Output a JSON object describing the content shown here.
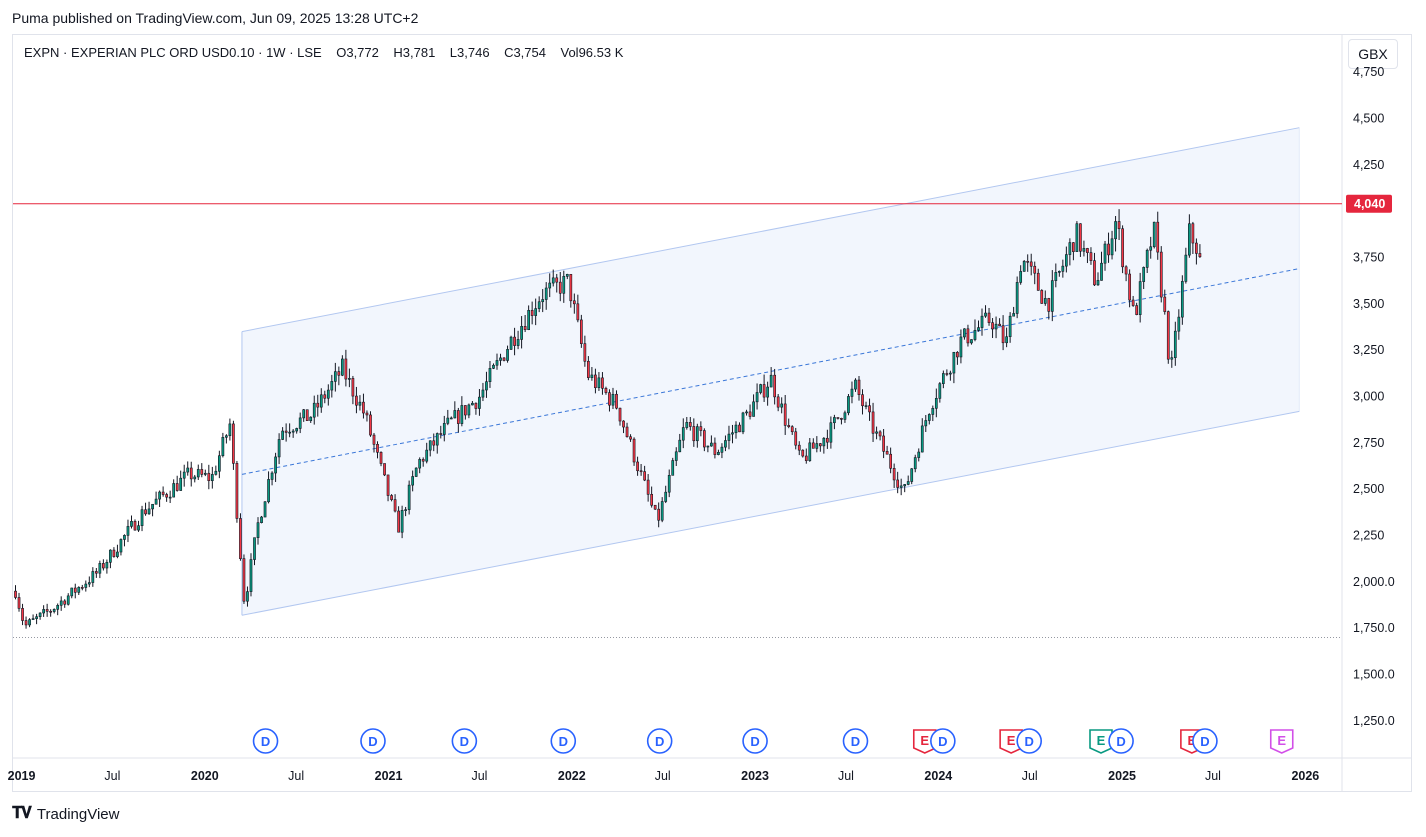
{
  "header": {
    "publisher": "Puma published on TradingView.com, Jun 09, 2025 13:28 UTC+2"
  },
  "legend": {
    "symbol": "EXPN",
    "name": "EXPERIAN PLC ORD USD0.10",
    "interval": "1W",
    "exchange": "LSE",
    "open_label": "O",
    "open": "3,772",
    "high_label": "H",
    "high": "3,781",
    "low_label": "L",
    "low": "3,746",
    "close_label": "C",
    "close": "3,754",
    "vol_label": "Vol",
    "vol": "96.53 K"
  },
  "currency": "GBX",
  "footer": {
    "brand": "TradingView"
  },
  "colors": {
    "up": "#089981",
    "down": "#f23645",
    "candle_outline": "#131722",
    "channel_line": "#b2c7f0",
    "channel_fill": "#eef3fc",
    "mid_line": "#3b77d8",
    "resistance": "#e5263d",
    "support": "#9598a1",
    "dividend": "#2962ff",
    "earnings": "#e5263d",
    "earnings_green": "#089981",
    "earnings_future": "#d24fe8"
  },
  "chart_data": {
    "type": "candlestick",
    "interval": "1W",
    "x_range": [
      "2018-12-15",
      "2026-03-15"
    ],
    "y_range": [
      1050,
      4950
    ],
    "y_ticks": [
      {
        "value": 1250,
        "label": "1,250.0"
      },
      {
        "value": 1500,
        "label": "1,500.0"
      },
      {
        "value": 1750,
        "label": "1,750.0"
      },
      {
        "value": 2000,
        "label": "2,000.0"
      },
      {
        "value": 2250,
        "label": "2,250"
      },
      {
        "value": 2500,
        "label": "2,500"
      },
      {
        "value": 2750,
        "label": "2,750"
      },
      {
        "value": 3000,
        "label": "3,000"
      },
      {
        "value": 3250,
        "label": "3,250"
      },
      {
        "value": 3500,
        "label": "3,500"
      },
      {
        "value": 3750,
        "label": "3,750"
      },
      {
        "value": 4250,
        "label": "4,250"
      },
      {
        "value": 4500,
        "label": "4,500"
      },
      {
        "value": 4750,
        "label": "4,750"
      }
    ],
    "x_ticks": [
      {
        "date": "2019-01-01",
        "label": "2019",
        "bold": true
      },
      {
        "date": "2019-07-01",
        "label": "Jul",
        "bold": false
      },
      {
        "date": "2020-01-01",
        "label": "2020",
        "bold": true
      },
      {
        "date": "2020-07-01",
        "label": "Jul",
        "bold": false
      },
      {
        "date": "2021-01-01",
        "label": "2021",
        "bold": true
      },
      {
        "date": "2021-07-01",
        "label": "Jul",
        "bold": false
      },
      {
        "date": "2022-01-01",
        "label": "2022",
        "bold": true
      },
      {
        "date": "2022-07-01",
        "label": "Jul",
        "bold": false
      },
      {
        "date": "2023-01-01",
        "label": "2023",
        "bold": true
      },
      {
        "date": "2023-07-01",
        "label": "Jul",
        "bold": false
      },
      {
        "date": "2024-01-01",
        "label": "2024",
        "bold": true
      },
      {
        "date": "2024-07-01",
        "label": "Jul",
        "bold": false
      },
      {
        "date": "2025-01-01",
        "label": "2025",
        "bold": true
      },
      {
        "date": "2025-07-01",
        "label": "Jul",
        "bold": false
      },
      {
        "date": "2026-01-01",
        "label": "2026",
        "bold": true
      }
    ],
    "price_path": [
      [
        "2018-12-20",
        1950
      ],
      [
        "2019-01-07",
        1760
      ],
      [
        "2019-03-01",
        1850
      ],
      [
        "2019-06-01",
        2050
      ],
      [
        "2019-09-01",
        2380
      ],
      [
        "2019-12-01",
        2580
      ],
      [
        "2020-01-15",
        2560
      ],
      [
        "2020-02-20",
        2850
      ],
      [
        "2020-03-20",
        1880
      ],
      [
        "2020-04-15",
        2300
      ],
      [
        "2020-06-01",
        2820
      ],
      [
        "2020-08-01",
        2900
      ],
      [
        "2020-10-01",
        3150
      ],
      [
        "2020-11-15",
        2900
      ],
      [
        "2021-01-20",
        2290
      ],
      [
        "2021-03-01",
        2640
      ],
      [
        "2021-05-01",
        2850
      ],
      [
        "2021-07-01",
        3000
      ],
      [
        "2021-09-01",
        3300
      ],
      [
        "2021-11-01",
        3550
      ],
      [
        "2021-12-25",
        3620
      ],
      [
        "2022-02-01",
        3120
      ],
      [
        "2022-04-01",
        2950
      ],
      [
        "2022-06-20",
        2320
      ],
      [
        "2022-08-15",
        2850
      ],
      [
        "2022-10-15",
        2700
      ],
      [
        "2022-12-15",
        2900
      ],
      [
        "2023-02-01",
        3100
      ],
      [
        "2023-04-01",
        2650
      ],
      [
        "2023-06-01",
        2820
      ],
      [
        "2023-07-20",
        3050
      ],
      [
        "2023-08-20",
        2850
      ],
      [
        "2023-10-25",
        2480
      ],
      [
        "2023-12-15",
        2950
      ],
      [
        "2024-02-15",
        3300
      ],
      [
        "2024-04-15",
        3420
      ],
      [
        "2024-05-15",
        3280
      ],
      [
        "2024-06-15",
        3750
      ],
      [
        "2024-08-05",
        3500
      ],
      [
        "2024-10-01",
        3880
      ],
      [
        "2024-11-10",
        3620
      ],
      [
        "2024-12-20",
        3950
      ],
      [
        "2025-01-25",
        3420
      ],
      [
        "2025-03-05",
        3900
      ],
      [
        "2025-03-25",
        3480
      ],
      [
        "2025-04-08",
        3120
      ],
      [
        "2025-05-15",
        3880
      ],
      [
        "2025-06-09",
        3754
      ]
    ],
    "channel": {
      "upper": [
        [
          "2020-03-15",
          3350
        ],
        [
          "2025-12-20",
          4450
        ]
      ],
      "lower": [
        [
          "2020-03-15",
          1820
        ],
        [
          "2025-12-20",
          2920
        ]
      ],
      "mid": [
        [
          "2020-03-15",
          2580
        ],
        [
          "2025-12-20",
          3690
        ]
      ]
    },
    "resistance": {
      "value": 4040,
      "label": "4,040"
    },
    "support": {
      "value": 1700
    },
    "events": [
      {
        "date": "2020-05-01",
        "type": "D"
      },
      {
        "date": "2020-12-01",
        "type": "D"
      },
      {
        "date": "2021-06-01",
        "type": "D"
      },
      {
        "date": "2021-12-15",
        "type": "D"
      },
      {
        "date": "2022-06-25",
        "type": "D"
      },
      {
        "date": "2023-01-01",
        "type": "D"
      },
      {
        "date": "2023-07-20",
        "type": "D"
      },
      {
        "date": "2023-12-05",
        "type": "E"
      },
      {
        "date": "2024-01-10",
        "type": "D"
      },
      {
        "date": "2024-05-25",
        "type": "E"
      },
      {
        "date": "2024-06-30",
        "type": "D"
      },
      {
        "date": "2024-11-20",
        "type": "E",
        "color": "green"
      },
      {
        "date": "2024-12-30",
        "type": "D"
      },
      {
        "date": "2025-05-20",
        "type": "E"
      },
      {
        "date": "2025-06-15",
        "type": "D"
      },
      {
        "date": "2025-11-15",
        "type": "E",
        "future": true
      }
    ]
  }
}
